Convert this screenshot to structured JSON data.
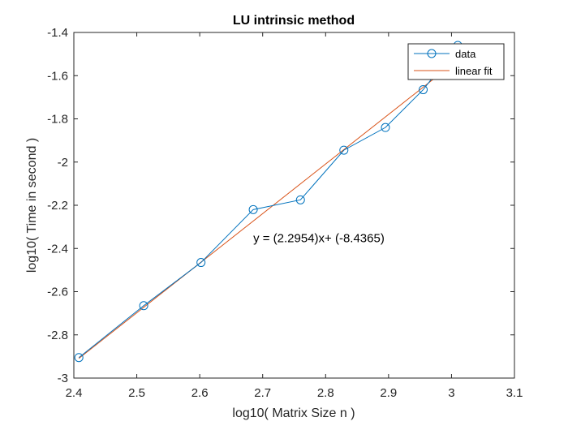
{
  "chart_data": {
    "type": "line",
    "title": "LU intrinsic method",
    "xlabel": "log10( Matrix Size n )",
    "ylabel": "log10( Time in second )",
    "xlim": [
      2.4,
      3.1
    ],
    "ylim": [
      -3,
      -1.4
    ],
    "xticks": [
      2.4,
      2.5,
      2.6,
      2.7,
      2.8,
      2.9,
      3,
      3.1
    ],
    "xtick_labels": [
      "2.4",
      "2.5",
      "2.6",
      "2.7",
      "2.8",
      "2.9",
      "3",
      "3.1"
    ],
    "yticks": [
      -3,
      -2.8,
      -2.6,
      -2.4,
      -2.2,
      -2,
      -1.8,
      -1.6,
      -1.4
    ],
    "ytick_labels": [
      "-3",
      "-2.8",
      "-2.6",
      "-2.4",
      "-2.2",
      "-2",
      "-1.8",
      "-1.6",
      "-1.4"
    ],
    "grid": false,
    "legend_position": "top-right",
    "series": [
      {
        "name": "data",
        "style": "line-circle-markers",
        "color": "#0072BD",
        "x": [
          2.408,
          2.511,
          2.602,
          2.685,
          2.76,
          2.829,
          2.895,
          2.955,
          3.01
        ],
        "y": [
          -2.905,
          -2.665,
          -2.465,
          -2.22,
          -2.175,
          -1.945,
          -1.84,
          -1.665,
          -1.46
        ]
      },
      {
        "name": "linear fit",
        "style": "line",
        "color": "#D95319",
        "x": [
          2.408,
          3.01
        ],
        "y": [
          -2.909,
          -1.527
        ],
        "slope": 2.2954,
        "intercept": -8.4365
      }
    ],
    "annotations": [
      {
        "text": "y = (2.2954)x+ (-8.4365)",
        "x": 2.685,
        "y": -2.37
      }
    ]
  }
}
